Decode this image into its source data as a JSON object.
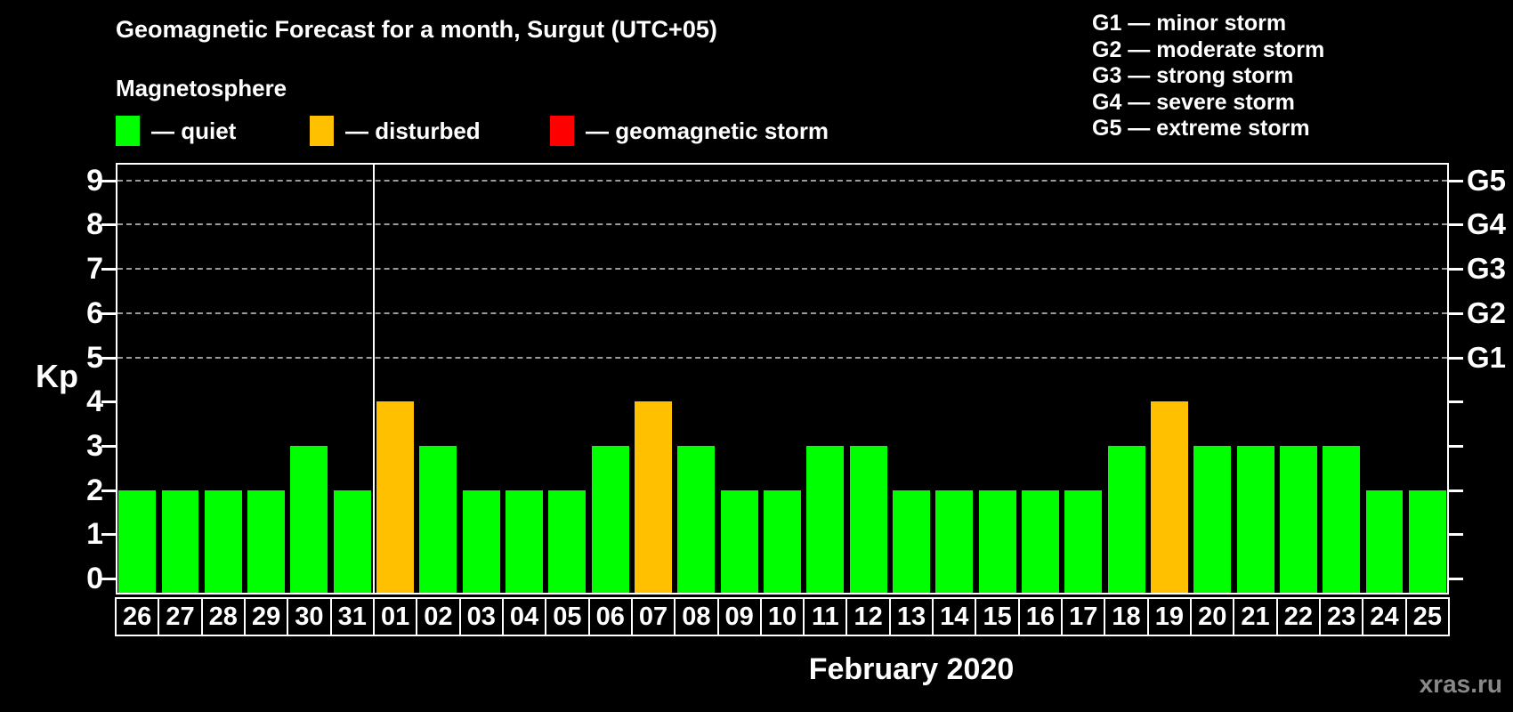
{
  "title": "Geomagnetic Forecast for a month, Surgut (UTC+05)",
  "subtitle": "Magnetosphere",
  "legend": {
    "quiet": {
      "label": "— quiet",
      "color": "#00ff00"
    },
    "disturbed": {
      "label": "— disturbed",
      "color": "#ffc000"
    },
    "storm": {
      "label": "— geomagnetic storm",
      "color": "#ff0000"
    }
  },
  "storm_scale": [
    {
      "label": "G1 — minor storm"
    },
    {
      "label": "G2 — moderate storm"
    },
    {
      "label": "G3 — strong storm"
    },
    {
      "label": "G4 — severe storm"
    },
    {
      "label": "G5 — extreme storm"
    }
  ],
  "watermark": "xras.ru",
  "chart_data": {
    "type": "bar",
    "title": "Geomagnetic Forecast for a month, Surgut (UTC+05)",
    "xlabel": "February 2020",
    "ylabel": "Kp",
    "ylim": [
      0,
      9.4
    ],
    "yticks": [
      0,
      1,
      2,
      3,
      4,
      5,
      6,
      7,
      8,
      9
    ],
    "gridlines_at": [
      5,
      6,
      7,
      8,
      9
    ],
    "right_axis": [
      {
        "kp": 5,
        "label": "G1"
      },
      {
        "kp": 6,
        "label": "G2"
      },
      {
        "kp": 7,
        "label": "G3"
      },
      {
        "kp": 8,
        "label": "G4"
      },
      {
        "kp": 9,
        "label": "G5"
      }
    ],
    "month_separator_after_index": 5,
    "categories": [
      "26",
      "27",
      "28",
      "29",
      "30",
      "31",
      "01",
      "02",
      "03",
      "04",
      "05",
      "06",
      "07",
      "08",
      "09",
      "10",
      "11",
      "12",
      "13",
      "14",
      "15",
      "16",
      "17",
      "18",
      "19",
      "20",
      "21",
      "22",
      "23",
      "24",
      "25"
    ],
    "values": [
      2,
      2,
      2,
      2,
      3,
      2,
      4,
      3,
      2,
      2,
      2,
      3,
      4,
      3,
      2,
      2,
      3,
      3,
      2,
      2,
      2,
      2,
      2,
      3,
      4,
      3,
      3,
      3,
      3,
      2,
      2
    ],
    "statuses": [
      "quiet",
      "quiet",
      "quiet",
      "quiet",
      "quiet",
      "quiet",
      "disturbed",
      "quiet",
      "quiet",
      "quiet",
      "quiet",
      "quiet",
      "disturbed",
      "quiet",
      "quiet",
      "quiet",
      "quiet",
      "quiet",
      "quiet",
      "quiet",
      "quiet",
      "quiet",
      "quiet",
      "quiet",
      "disturbed",
      "quiet",
      "quiet",
      "quiet",
      "quiet",
      "quiet",
      "quiet"
    ],
    "status_colors": {
      "quiet": "#00ff00",
      "disturbed": "#ffc000",
      "storm": "#ff0000"
    },
    "legend_position": "top-left",
    "grid": true
  }
}
